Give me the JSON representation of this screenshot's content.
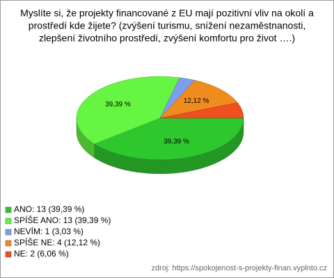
{
  "chart_data": {
    "type": "pie3d",
    "title": [
      "Myslíte si, že projekty financované z EU mají pozitivní vliv na okolí a",
      "prostředí kde žijete? (zvýšení turismu, snížení nezaměstnanosti,",
      "zlepšení životního prostředí, zvýšení komfortu pro život ….)"
    ],
    "categories": [
      "ANO: 13 (39,39 %)",
      "SPÍŠE ANO: 13 (39,39 %)",
      "NEVÍM: 1 (3,03 %)",
      "SPÍŠE NE: 4 (12,12 %)",
      "NE: 2 (6,06 %)"
    ],
    "values": [
      39.39,
      39.39,
      3.03,
      12.12,
      6.06
    ],
    "value_labels": [
      "39,39 %",
      "39,39 %",
      null,
      "12,12 %",
      null
    ],
    "colors": [
      "#2ec82e",
      "#66f542",
      "#7d9ef0",
      "#f08c1e",
      "#f0501e"
    ],
    "source": "zdroj: https://spokojenost-s-projekty-finan.vyplnto.cz"
  }
}
